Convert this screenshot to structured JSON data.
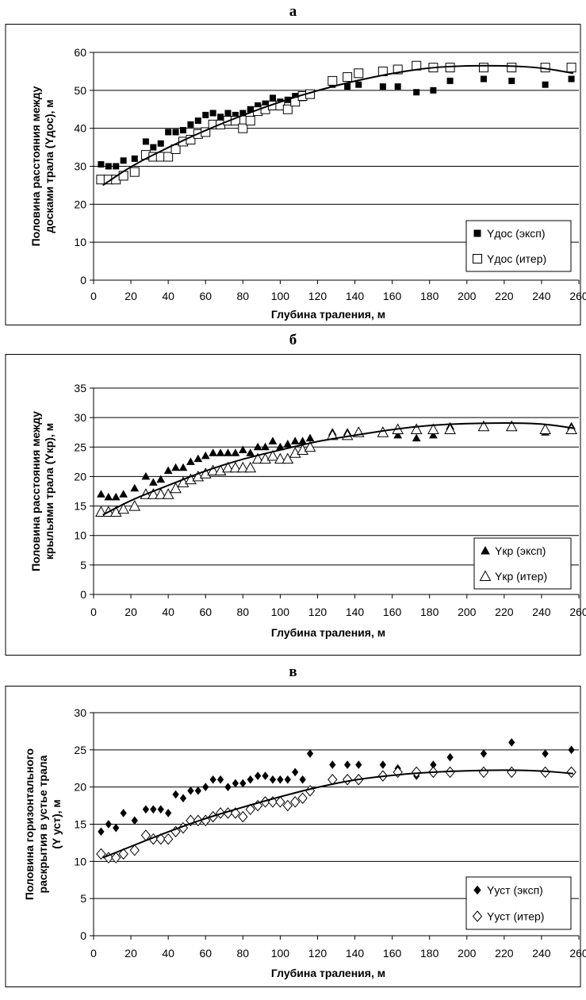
{
  "chart_data": [
    {
      "panel_label": "а",
      "type": "scatter",
      "title": "",
      "xlabel": "Глубина траления, м",
      "ylabel_lines": [
        "Половина расстояния между",
        "досками трала (Yдос), м"
      ],
      "xlim": [
        0,
        260
      ],
      "ylim": [
        0,
        60
      ],
      "xticks": [
        0,
        20,
        40,
        60,
        80,
        100,
        120,
        140,
        160,
        180,
        200,
        220,
        240,
        260
      ],
      "yticks": [
        0,
        10,
        20,
        30,
        40,
        50,
        60
      ],
      "grid": "horizontal",
      "legend_position": "bottom-right",
      "series": [
        {
          "name": "Yдос (эксп)",
          "marker": "filled-square",
          "x": [
            4,
            8,
            12,
            16,
            22,
            28,
            32,
            36,
            40,
            44,
            48,
            52,
            56,
            60,
            64,
            68,
            72,
            76,
            80,
            84,
            88,
            92,
            96,
            100,
            104,
            108,
            112,
            116,
            128,
            136,
            142,
            155,
            163,
            173,
            182,
            191,
            209,
            224,
            242,
            256
          ],
          "y": [
            30.5,
            30,
            30,
            31.5,
            32,
            36.5,
            35,
            36,
            39,
            39,
            39.5,
            41,
            42,
            43.5,
            44,
            43,
            44,
            43.5,
            44,
            45,
            46,
            46.5,
            48,
            47,
            47.5,
            48.5,
            48,
            49,
            51.5,
            51,
            51.5,
            51,
            51,
            49.5,
            50,
            52.5,
            53,
            52.5,
            51.5,
            53
          ]
        },
        {
          "name": "Yдос (итер)",
          "marker": "open-square",
          "x": [
            4,
            8,
            12,
            16,
            22,
            28,
            32,
            36,
            40,
            44,
            48,
            52,
            56,
            60,
            64,
            68,
            72,
            76,
            80,
            84,
            88,
            92,
            96,
            100,
            104,
            108,
            112,
            116,
            128,
            136,
            142,
            155,
            163,
            173,
            182,
            191,
            209,
            224,
            242,
            256
          ],
          "y": [
            26.5,
            26.5,
            26.5,
            27.5,
            28.5,
            33,
            32.5,
            32.5,
            32.5,
            34.5,
            36.5,
            37,
            38.5,
            39,
            41,
            41,
            42,
            42,
            40,
            42,
            44.5,
            45,
            46,
            46,
            45,
            47,
            48.5,
            49,
            52.5,
            53.5,
            54.5,
            55,
            55.5,
            56.5,
            56,
            56,
            56,
            56,
            56,
            56
          ]
        },
        {
          "name": "trend",
          "marker": "line",
          "x": [
            5,
            20,
            40,
            60,
            80,
            100,
            120,
            140,
            160,
            180,
            200,
            220,
            240,
            257
          ],
          "y": [
            25,
            30,
            35,
            39.5,
            43.5,
            47,
            50,
            52.5,
            54.5,
            56,
            56.5,
            56.5,
            56,
            54.5
          ]
        }
      ]
    },
    {
      "panel_label": "б",
      "type": "scatter",
      "title": "",
      "xlabel": "Глубина траления, м",
      "ylabel_lines": [
        "Половина расстояния между",
        "крыльями трала (Yкр), м"
      ],
      "xlim": [
        0,
        260
      ],
      "ylim": [
        0,
        35
      ],
      "xticks": [
        0,
        20,
        40,
        60,
        80,
        100,
        120,
        140,
        160,
        180,
        200,
        220,
        240,
        260
      ],
      "yticks": [
        0,
        5,
        10,
        15,
        20,
        25,
        30,
        35
      ],
      "grid": "horizontal",
      "legend_position": "bottom-right",
      "series": [
        {
          "name": "Yкр (эксп)",
          "marker": "filled-triangle",
          "x": [
            4,
            8,
            12,
            16,
            22,
            28,
            32,
            36,
            40,
            44,
            48,
            52,
            56,
            60,
            64,
            68,
            72,
            76,
            80,
            84,
            88,
            92,
            96,
            100,
            104,
            108,
            112,
            116,
            128,
            136,
            142,
            155,
            163,
            173,
            182,
            191,
            209,
            224,
            242,
            256
          ],
          "y": [
            17,
            16.5,
            16.5,
            17,
            18,
            20,
            19,
            19.5,
            21,
            21.5,
            21.5,
            22.5,
            23,
            23.5,
            24,
            24,
            24,
            24,
            24.5,
            24,
            25,
            25,
            26,
            25,
            25.5,
            26,
            26,
            26.5,
            27.5,
            27.5,
            27.5,
            27.5,
            27,
            26.5,
            27,
            28.5,
            28.5,
            28.5,
            27.5,
            28.5
          ]
        },
        {
          "name": "Yкр (итер)",
          "marker": "open-triangle",
          "x": [
            4,
            8,
            12,
            16,
            22,
            28,
            32,
            36,
            40,
            44,
            48,
            52,
            56,
            60,
            64,
            68,
            72,
            76,
            80,
            84,
            88,
            92,
            96,
            100,
            104,
            108,
            112,
            116,
            128,
            136,
            142,
            155,
            163,
            173,
            182,
            191,
            209,
            224,
            242,
            256
          ],
          "y": [
            14,
            14,
            14,
            14.5,
            15,
            17,
            17,
            17,
            17,
            18,
            19,
            19.5,
            20,
            20.5,
            21,
            21,
            21.5,
            21.5,
            21.5,
            21.5,
            23,
            23,
            23.5,
            23,
            23,
            24,
            24.5,
            25,
            27,
            27,
            27.5,
            27.5,
            28,
            28,
            28,
            28,
            28.5,
            28.5,
            28,
            28
          ]
        },
        {
          "name": "trend",
          "marker": "line",
          "x": [
            5,
            20,
            40,
            60,
            80,
            100,
            120,
            140,
            160,
            180,
            200,
            220,
            240,
            257
          ],
          "y": [
            13.5,
            16,
            18.5,
            21,
            23,
            24.5,
            26,
            27,
            28,
            28.7,
            29,
            29.1,
            29,
            28.2
          ]
        }
      ]
    },
    {
      "panel_label": "в",
      "type": "scatter",
      "title": "",
      "xlabel": "Глубина траления, м",
      "ylabel_lines": [
        "Половина горизонтального",
        "раскрытия в устье трала",
        "(Y уст), м"
      ],
      "xlim": [
        0,
        260
      ],
      "ylim": [
        0,
        30
      ],
      "xticks": [
        0,
        20,
        40,
        60,
        80,
        100,
        120,
        140,
        160,
        180,
        200,
        220,
        240,
        260
      ],
      "yticks": [
        0,
        5,
        10,
        15,
        20,
        25,
        30
      ],
      "grid": "horizontal",
      "legend_position": "bottom-right",
      "series": [
        {
          "name": "Yуст (эксп)",
          "marker": "filled-diamond",
          "x": [
            4,
            8,
            12,
            16,
            22,
            28,
            32,
            36,
            40,
            44,
            48,
            52,
            56,
            60,
            64,
            68,
            72,
            76,
            80,
            84,
            88,
            92,
            96,
            100,
            104,
            108,
            112,
            116,
            128,
            136,
            142,
            155,
            163,
            173,
            182,
            191,
            209,
            224,
            242,
            256
          ],
          "y": [
            14,
            15,
            14.5,
            16.5,
            15.5,
            17,
            17,
            17,
            16.5,
            19,
            18.5,
            19.5,
            19.5,
            20,
            21,
            21,
            20,
            20.5,
            20.5,
            21,
            21.5,
            21.5,
            21,
            21,
            21,
            22,
            21,
            24.5,
            23,
            23,
            23,
            23,
            22.5,
            21.5,
            23,
            24,
            24.5,
            26,
            24.5,
            25
          ]
        },
        {
          "name": "Yуст (итер)",
          "marker": "open-diamond",
          "x": [
            4,
            8,
            12,
            16,
            22,
            28,
            32,
            36,
            40,
            44,
            48,
            52,
            56,
            60,
            64,
            68,
            72,
            76,
            80,
            84,
            88,
            92,
            96,
            100,
            104,
            108,
            112,
            116,
            128,
            136,
            142,
            155,
            163,
            173,
            182,
            191,
            209,
            224,
            242,
            256
          ],
          "y": [
            11,
            10.5,
            10.5,
            11,
            11.5,
            13.5,
            13,
            13,
            13,
            14,
            14.5,
            15.5,
            15.5,
            15.5,
            16,
            16.5,
            16.5,
            16.5,
            16,
            17,
            17.5,
            18,
            18,
            18,
            17.5,
            18,
            18.5,
            19.5,
            21,
            21,
            21,
            21.5,
            22,
            22,
            22,
            22,
            22,
            22,
            22,
            22
          ]
        },
        {
          "name": "trend",
          "marker": "line",
          "x": [
            5,
            20,
            40,
            60,
            80,
            100,
            120,
            140,
            160,
            180,
            200,
            220,
            240,
            257
          ],
          "y": [
            10.5,
            12,
            14,
            15.8,
            17.3,
            18.7,
            20,
            21,
            21.6,
            22,
            22.2,
            22.3,
            22.2,
            21.8
          ]
        }
      ]
    }
  ]
}
